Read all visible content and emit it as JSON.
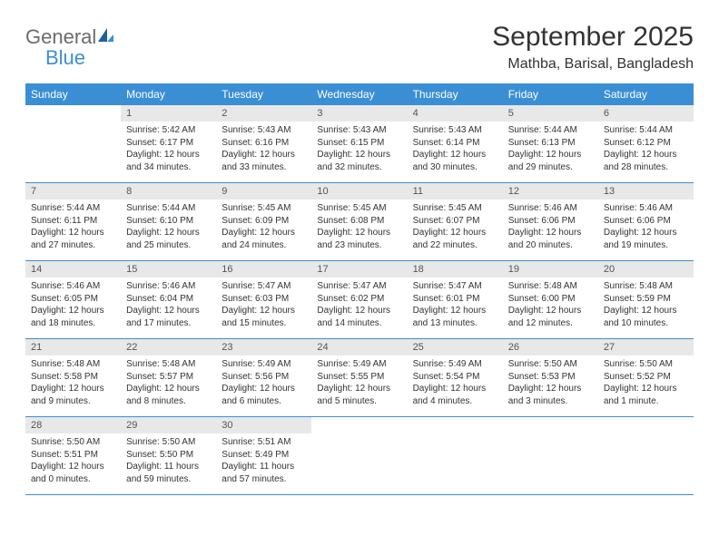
{
  "logo": {
    "general": "General",
    "blue": "Blue"
  },
  "title": "September 2025",
  "location": "Mathba, Barisal, Bangladesh",
  "colors": {
    "header_bg": "#3a8fd4",
    "header_text": "#ffffff",
    "daynum_bg": "#e8e8e8",
    "text": "#333333",
    "logo_gray": "#6b6b6b",
    "logo_blue": "#3a8fd4",
    "border": "#3a8fd4"
  },
  "weekdays": [
    "Sunday",
    "Monday",
    "Tuesday",
    "Wednesday",
    "Thursday",
    "Friday",
    "Saturday"
  ],
  "weeks": [
    [
      null,
      {
        "n": "1",
        "sr": "Sunrise: 5:42 AM",
        "ss": "Sunset: 6:17 PM",
        "dl": "Daylight: 12 hours and 34 minutes."
      },
      {
        "n": "2",
        "sr": "Sunrise: 5:43 AM",
        "ss": "Sunset: 6:16 PM",
        "dl": "Daylight: 12 hours and 33 minutes."
      },
      {
        "n": "3",
        "sr": "Sunrise: 5:43 AM",
        "ss": "Sunset: 6:15 PM",
        "dl": "Daylight: 12 hours and 32 minutes."
      },
      {
        "n": "4",
        "sr": "Sunrise: 5:43 AM",
        "ss": "Sunset: 6:14 PM",
        "dl": "Daylight: 12 hours and 30 minutes."
      },
      {
        "n": "5",
        "sr": "Sunrise: 5:44 AM",
        "ss": "Sunset: 6:13 PM",
        "dl": "Daylight: 12 hours and 29 minutes."
      },
      {
        "n": "6",
        "sr": "Sunrise: 5:44 AM",
        "ss": "Sunset: 6:12 PM",
        "dl": "Daylight: 12 hours and 28 minutes."
      }
    ],
    [
      {
        "n": "7",
        "sr": "Sunrise: 5:44 AM",
        "ss": "Sunset: 6:11 PM",
        "dl": "Daylight: 12 hours and 27 minutes."
      },
      {
        "n": "8",
        "sr": "Sunrise: 5:44 AM",
        "ss": "Sunset: 6:10 PM",
        "dl": "Daylight: 12 hours and 25 minutes."
      },
      {
        "n": "9",
        "sr": "Sunrise: 5:45 AM",
        "ss": "Sunset: 6:09 PM",
        "dl": "Daylight: 12 hours and 24 minutes."
      },
      {
        "n": "10",
        "sr": "Sunrise: 5:45 AM",
        "ss": "Sunset: 6:08 PM",
        "dl": "Daylight: 12 hours and 23 minutes."
      },
      {
        "n": "11",
        "sr": "Sunrise: 5:45 AM",
        "ss": "Sunset: 6:07 PM",
        "dl": "Daylight: 12 hours and 22 minutes."
      },
      {
        "n": "12",
        "sr": "Sunrise: 5:46 AM",
        "ss": "Sunset: 6:06 PM",
        "dl": "Daylight: 12 hours and 20 minutes."
      },
      {
        "n": "13",
        "sr": "Sunrise: 5:46 AM",
        "ss": "Sunset: 6:06 PM",
        "dl": "Daylight: 12 hours and 19 minutes."
      }
    ],
    [
      {
        "n": "14",
        "sr": "Sunrise: 5:46 AM",
        "ss": "Sunset: 6:05 PM",
        "dl": "Daylight: 12 hours and 18 minutes."
      },
      {
        "n": "15",
        "sr": "Sunrise: 5:46 AM",
        "ss": "Sunset: 6:04 PM",
        "dl": "Daylight: 12 hours and 17 minutes."
      },
      {
        "n": "16",
        "sr": "Sunrise: 5:47 AM",
        "ss": "Sunset: 6:03 PM",
        "dl": "Daylight: 12 hours and 15 minutes."
      },
      {
        "n": "17",
        "sr": "Sunrise: 5:47 AM",
        "ss": "Sunset: 6:02 PM",
        "dl": "Daylight: 12 hours and 14 minutes."
      },
      {
        "n": "18",
        "sr": "Sunrise: 5:47 AM",
        "ss": "Sunset: 6:01 PM",
        "dl": "Daylight: 12 hours and 13 minutes."
      },
      {
        "n": "19",
        "sr": "Sunrise: 5:48 AM",
        "ss": "Sunset: 6:00 PM",
        "dl": "Daylight: 12 hours and 12 minutes."
      },
      {
        "n": "20",
        "sr": "Sunrise: 5:48 AM",
        "ss": "Sunset: 5:59 PM",
        "dl": "Daylight: 12 hours and 10 minutes."
      }
    ],
    [
      {
        "n": "21",
        "sr": "Sunrise: 5:48 AM",
        "ss": "Sunset: 5:58 PM",
        "dl": "Daylight: 12 hours and 9 minutes."
      },
      {
        "n": "22",
        "sr": "Sunrise: 5:48 AM",
        "ss": "Sunset: 5:57 PM",
        "dl": "Daylight: 12 hours and 8 minutes."
      },
      {
        "n": "23",
        "sr": "Sunrise: 5:49 AM",
        "ss": "Sunset: 5:56 PM",
        "dl": "Daylight: 12 hours and 6 minutes."
      },
      {
        "n": "24",
        "sr": "Sunrise: 5:49 AM",
        "ss": "Sunset: 5:55 PM",
        "dl": "Daylight: 12 hours and 5 minutes."
      },
      {
        "n": "25",
        "sr": "Sunrise: 5:49 AM",
        "ss": "Sunset: 5:54 PM",
        "dl": "Daylight: 12 hours and 4 minutes."
      },
      {
        "n": "26",
        "sr": "Sunrise: 5:50 AM",
        "ss": "Sunset: 5:53 PM",
        "dl": "Daylight: 12 hours and 3 minutes."
      },
      {
        "n": "27",
        "sr": "Sunrise: 5:50 AM",
        "ss": "Sunset: 5:52 PM",
        "dl": "Daylight: 12 hours and 1 minute."
      }
    ],
    [
      {
        "n": "28",
        "sr": "Sunrise: 5:50 AM",
        "ss": "Sunset: 5:51 PM",
        "dl": "Daylight: 12 hours and 0 minutes."
      },
      {
        "n": "29",
        "sr": "Sunrise: 5:50 AM",
        "ss": "Sunset: 5:50 PM",
        "dl": "Daylight: 11 hours and 59 minutes."
      },
      {
        "n": "30",
        "sr": "Sunrise: 5:51 AM",
        "ss": "Sunset: 5:49 PM",
        "dl": "Daylight: 11 hours and 57 minutes."
      },
      null,
      null,
      null,
      null
    ]
  ]
}
